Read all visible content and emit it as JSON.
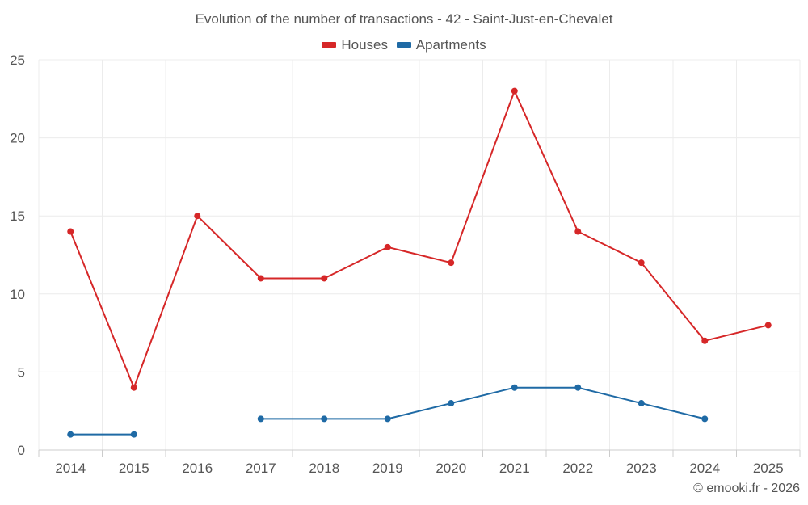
{
  "chart_data": {
    "type": "line",
    "title": "Evolution of the number of transactions - 42 - Saint-Just-en-Chevalet",
    "categories": [
      "2014",
      "2015",
      "2016",
      "2017",
      "2018",
      "2019",
      "2020",
      "2021",
      "2022",
      "2023",
      "2024",
      "2025"
    ],
    "series": [
      {
        "name": "Houses",
        "color": "#d62728",
        "values": [
          14,
          4,
          15,
          11,
          11,
          13,
          12,
          23,
          14,
          12,
          7,
          8
        ]
      },
      {
        "name": "Apartments",
        "color": "#1f6aa5",
        "values": [
          1,
          1,
          null,
          2,
          2,
          2,
          3,
          4,
          4,
          3,
          2,
          null
        ]
      }
    ],
    "yticks": [
      0,
      5,
      10,
      15,
      20,
      25
    ],
    "ylim": [
      0,
      25
    ],
    "xlabel": "",
    "ylabel": "",
    "grid": true,
    "legend_position": "top-center"
  },
  "credit": "© emooki.fr - 2026"
}
